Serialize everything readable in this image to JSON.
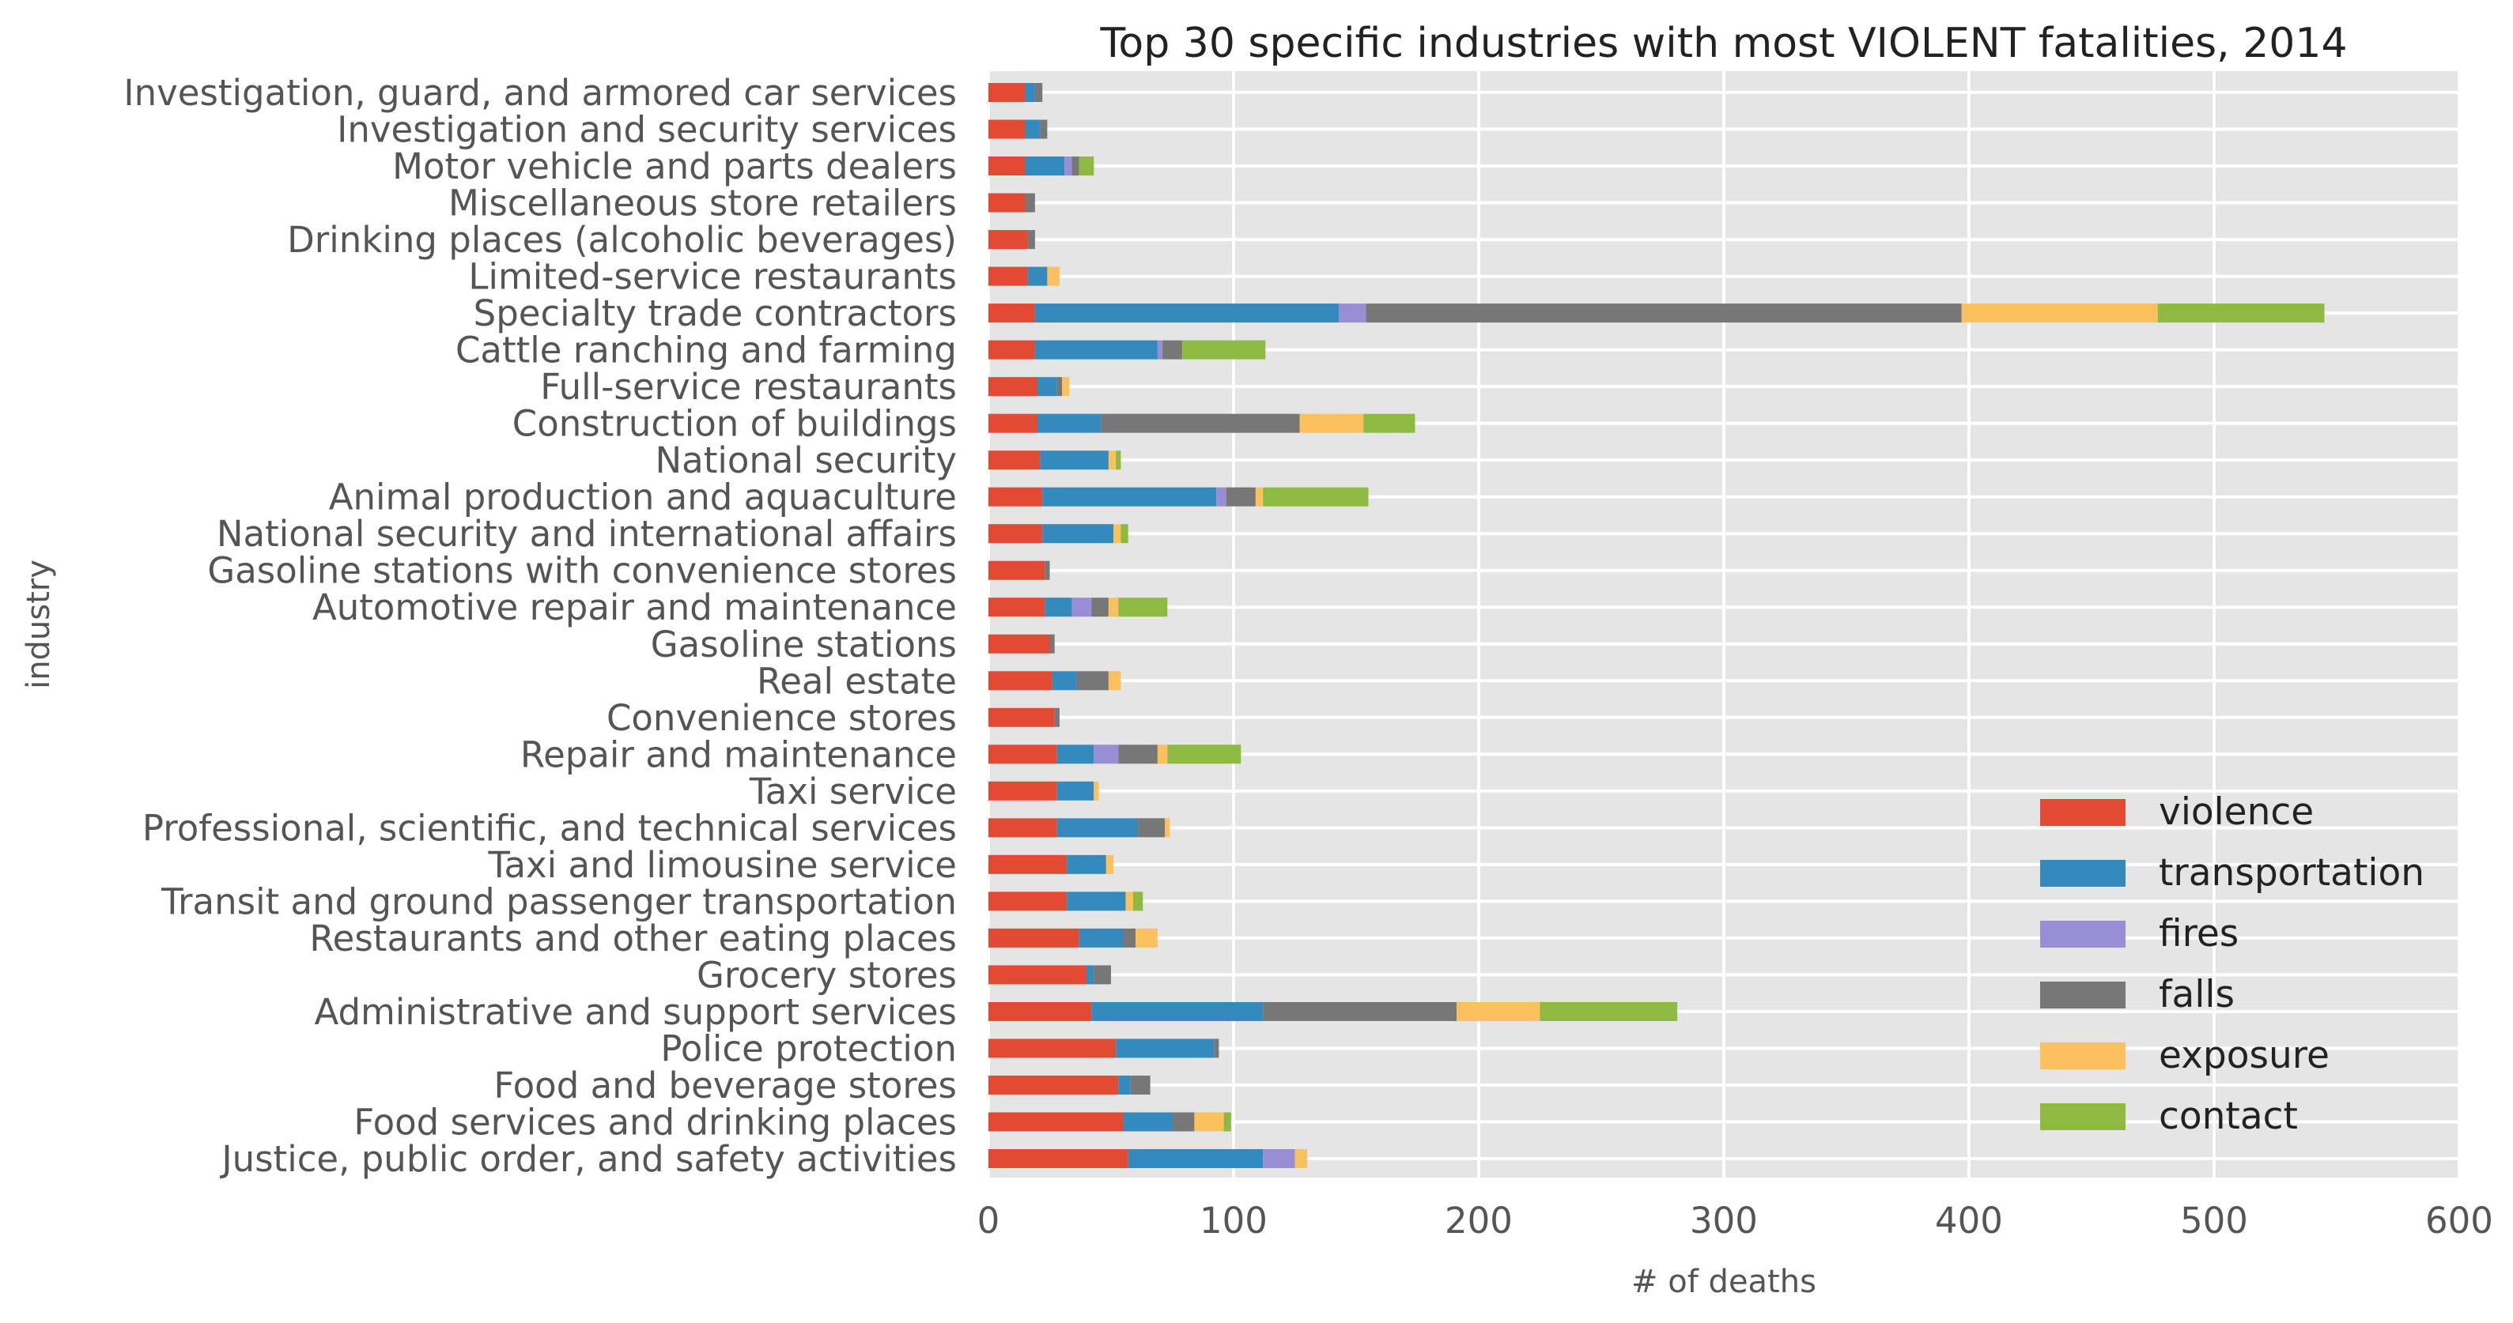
{
  "chart_data": {
    "type": "bar",
    "orientation": "horizontal",
    "stacked": true,
    "title": "Top 30 specific industries with most VIOLENT fatalities, 2014",
    "xlabel": "# of deaths",
    "ylabel": "industry",
    "xlim": [
      0,
      600
    ],
    "xticks": [
      "0",
      "100",
      "200",
      "300",
      "400",
      "500",
      "600"
    ],
    "grid": true,
    "legend_position": "lower-right",
    "categories": [
      "Investigation, guard, and armored car services",
      "Investigation and security services",
      "Motor vehicle and parts dealers",
      "Miscellaneous store retailers",
      "Drinking places (alcoholic beverages)",
      "Limited-service restaurants",
      "Specialty trade contractors",
      "Cattle ranching and farming",
      "Full-service restaurants",
      "Construction of buildings",
      "National security",
      "Animal production and aquaculture",
      "National security and international affairs",
      "Gasoline stations with convenience stores",
      "Automotive repair and maintenance",
      "Gasoline stations",
      "Real estate",
      "Convenience stores",
      "Repair and maintenance",
      "Taxi service",
      "Professional, scientific, and technical services",
      "Taxi and limousine service",
      "Transit and ground passenger transportation",
      "Restaurants and other eating places",
      "Grocery stores",
      "Administrative and support services",
      "Police protection",
      "Food and beverage stores",
      "Food services and drinking places",
      "Justice, public order, and safety activities"
    ],
    "series": [
      {
        "name": "violence",
        "color": "#E24A33",
        "values": [
          15,
          15,
          15,
          15,
          16,
          16,
          19,
          19,
          20,
          20,
          21,
          22,
          22,
          23,
          23,
          25,
          26,
          27,
          28,
          28,
          28,
          32,
          32,
          37,
          40,
          42,
          52,
          53,
          55,
          57
        ]
      },
      {
        "name": "transportation",
        "color": "#348ABD",
        "values": [
          4,
          6,
          16,
          0,
          0,
          8,
          124,
          50,
          8,
          26,
          28,
          71,
          29,
          0,
          11,
          0,
          10,
          0,
          15,
          15,
          33,
          16,
          24,
          18,
          3,
          70,
          40,
          5,
          20,
          55
        ]
      },
      {
        "name": "fires",
        "color": "#988ED5",
        "values": [
          0,
          0,
          3,
          0,
          0,
          0,
          11,
          2,
          0,
          0,
          0,
          4,
          0,
          0,
          8,
          0,
          0,
          0,
          10,
          0,
          0,
          0,
          0,
          0,
          0,
          0,
          0,
          0,
          0,
          13
        ]
      },
      {
        "name": "falls",
        "color": "#777777",
        "values": [
          3,
          3,
          3,
          4,
          3,
          0,
          243,
          8,
          2,
          81,
          0,
          12,
          0,
          2,
          7,
          2,
          13,
          2,
          16,
          0,
          11,
          0,
          0,
          5,
          7,
          79,
          2,
          8,
          9,
          0
        ]
      },
      {
        "name": "exposure",
        "color": "#FBC15E",
        "values": [
          0,
          0,
          0,
          0,
          0,
          5,
          80,
          0,
          3,
          26,
          3,
          3,
          3,
          0,
          4,
          0,
          5,
          0,
          4,
          2,
          2,
          3,
          3,
          9,
          0,
          34,
          0,
          0,
          12,
          5
        ]
      },
      {
        "name": "contact",
        "color": "#8EBA42",
        "values": [
          0,
          0,
          6,
          0,
          0,
          0,
          68,
          34,
          0,
          21,
          2,
          43,
          3,
          0,
          20,
          0,
          0,
          0,
          30,
          0,
          0,
          0,
          4,
          0,
          0,
          56,
          0,
          0,
          3,
          0
        ]
      }
    ]
  }
}
